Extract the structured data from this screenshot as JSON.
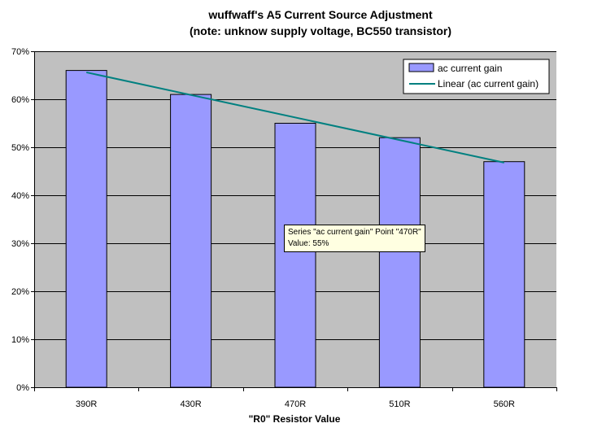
{
  "chart_data": {
    "type": "bar",
    "title": "wuffwaff's A5 Current Source Adjustment",
    "subtitle": "(note: unknow supply voltage, BC550 transistor)",
    "xlabel": "\"R0\" Resistor Value",
    "ylabel": "",
    "categories": [
      "390R",
      "430R",
      "470R",
      "510R",
      "560R"
    ],
    "series": [
      {
        "name": "ac current gain",
        "values": [
          0.66,
          0.61,
          0.55,
          0.52,
          0.47
        ],
        "color": "#9999ff"
      }
    ],
    "trendline": {
      "name": "Linear (ac current gain)",
      "type": "linear",
      "color": "#008080"
    },
    "ylim": [
      0,
      0.7
    ],
    "yticks": [
      0,
      0.1,
      0.2,
      0.3,
      0.4,
      0.5,
      0.6,
      0.7
    ],
    "ytick_labels": [
      "0%",
      "10%",
      "20%",
      "30%",
      "40%",
      "50%",
      "60%",
      "70%"
    ],
    "grid": true,
    "legend": "top-right",
    "plot_background": "#c0c0c0"
  },
  "tooltip": {
    "line1": "Series \"ac current gain\" Point \"470R\"",
    "line2": "Value: 55%"
  }
}
